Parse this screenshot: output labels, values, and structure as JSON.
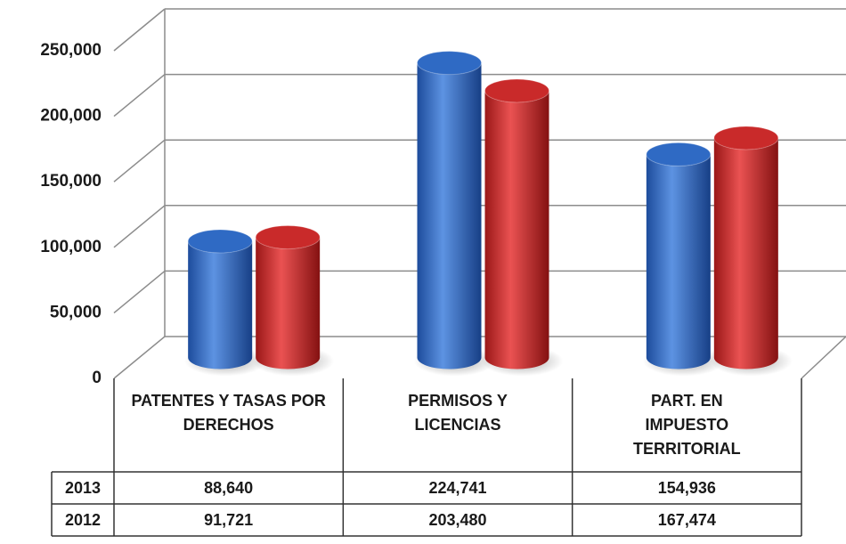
{
  "chart_data": {
    "type": "bar",
    "categories": [
      "PATENTES Y TASAS POR DERECHOS",
      "PERMISOS Y LICENCIAS",
      "PART. EN IMPUESTO TERRITORIAL"
    ],
    "series": [
      {
        "name": "2013",
        "color": "#2f6ac4",
        "values": [
          88640,
          224741,
          154936
        ],
        "value_labels": [
          "88,640",
          "224,741",
          "154,936"
        ]
      },
      {
        "name": "2012",
        "color": "#c92a2a",
        "values": [
          91721,
          203480,
          167474
        ],
        "value_labels": [
          "91,721",
          "203,480",
          "167,474"
        ]
      }
    ],
    "ylim": [
      0,
      250000
    ],
    "yticks": [
      0,
      {
        "value": 50000,
        "label": "50,000"
      },
      {
        "value": 100000,
        "label": "100,000"
      },
      {
        "value": 150000,
        "label": "150,000"
      },
      {
        "value": 200000,
        "label": "200,000"
      },
      {
        "value": 250000,
        "label": "250,000"
      }
    ],
    "grid": true
  }
}
